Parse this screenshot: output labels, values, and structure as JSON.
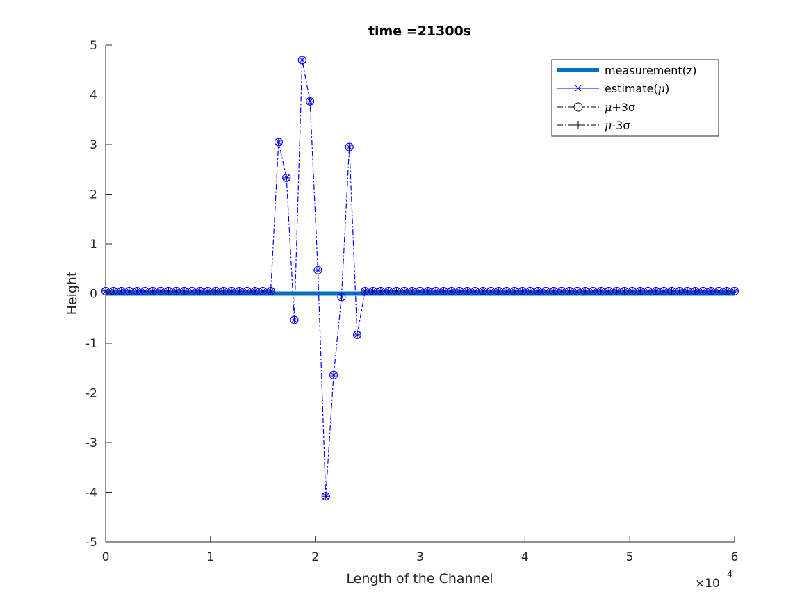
{
  "chart_data": {
    "type": "line",
    "title": "time =21300s",
    "xlabel": "Length of the Channel",
    "ylabel": "Height",
    "x_multiplier_label": "×10",
    "x_multiplier_exp": "4",
    "xlim": [
      0,
      6
    ],
    "ylim": [
      -5,
      5
    ],
    "xticks": [
      0,
      1,
      2,
      3,
      4,
      5,
      6
    ],
    "yticks": [
      5,
      4,
      3,
      2,
      1,
      0,
      -1,
      -2,
      -3,
      -4,
      -5
    ],
    "xtick_labels": [
      "0",
      "1",
      "2",
      "3",
      "4",
      "5",
      "6"
    ],
    "ytick_labels": [
      "5",
      "4",
      "3",
      "2",
      "1",
      "0",
      "-1",
      "-2",
      "-3",
      "-4",
      "-5"
    ],
    "legend_position": "top-right",
    "colors": {
      "measurement": "#0072BD",
      "estimate": "#0000FF",
      "axis": "#262626"
    },
    "legend": [
      {
        "key": "measurement",
        "label_prefix": "measurement(z)",
        "label_sym": "",
        "label_suffix": ""
      },
      {
        "key": "estimate",
        "label_prefix": "estimate(",
        "label_sym": "μ",
        "label_suffix": ")"
      },
      {
        "key": "upper",
        "label_prefix": "",
        "label_sym": "μ",
        "label_suffix": "+3σ"
      },
      {
        "key": "lower",
        "label_prefix": "",
        "label_sym": "μ",
        "label_suffix": "-3σ"
      }
    ],
    "series": [
      {
        "name": "measurement(z)",
        "x": [
          0,
          1.6,
          2.4,
          6
        ],
        "y": [
          0,
          0,
          0,
          0
        ]
      },
      {
        "name": "estimate(μ)",
        "x": [
          0,
          0.075,
          0.15,
          0.225,
          0.3,
          0.375,
          0.45,
          0.525,
          0.6,
          0.675,
          0.75,
          0.825,
          0.9,
          0.975,
          1.05,
          1.125,
          1.2,
          1.275,
          1.35,
          1.425,
          1.5,
          1.575,
          1.65,
          1.725,
          1.8,
          1.875,
          1.95,
          2.025,
          2.1,
          2.175,
          2.25,
          2.325,
          2.4,
          2.475,
          2.55,
          2.625,
          2.7,
          2.775,
          2.85,
          2.925,
          3.0,
          3.075,
          3.15,
          3.225,
          3.3,
          3.375,
          3.45,
          3.525,
          3.6,
          3.675,
          3.75,
          3.825,
          3.9,
          3.975,
          4.05,
          4.125,
          4.2,
          4.275,
          4.35,
          4.425,
          4.5,
          4.575,
          4.65,
          4.725,
          4.8,
          4.875,
          4.95,
          5.025,
          5.1,
          5.175,
          5.25,
          5.325,
          5.4,
          5.475,
          5.55,
          5.625,
          5.7,
          5.775,
          5.85,
          5.925,
          6.0
        ],
        "y": [
          0.05,
          0.05,
          0.05,
          0.05,
          0.05,
          0.05,
          0.05,
          0.05,
          0.05,
          0.05,
          0.05,
          0.05,
          0.05,
          0.05,
          0.05,
          0.05,
          0.05,
          0.05,
          0.05,
          0.05,
          0.05,
          0.05,
          3.05,
          2.33,
          -0.53,
          4.7,
          3.87,
          0.47,
          -4.08,
          -1.64,
          -0.07,
          2.95,
          -0.83,
          0.05,
          0.05,
          0.05,
          0.05,
          0.05,
          0.05,
          0.05,
          0.05,
          0.05,
          0.05,
          0.05,
          0.05,
          0.05,
          0.05,
          0.05,
          0.05,
          0.05,
          0.05,
          0.05,
          0.05,
          0.05,
          0.05,
          0.05,
          0.05,
          0.05,
          0.05,
          0.05,
          0.05,
          0.05,
          0.05,
          0.05,
          0.05,
          0.05,
          0.05,
          0.05,
          0.05,
          0.05,
          0.05,
          0.05,
          0.05,
          0.05,
          0.05,
          0.05,
          0.05,
          0.05,
          0.05,
          0.05,
          0.05
        ]
      }
    ]
  }
}
